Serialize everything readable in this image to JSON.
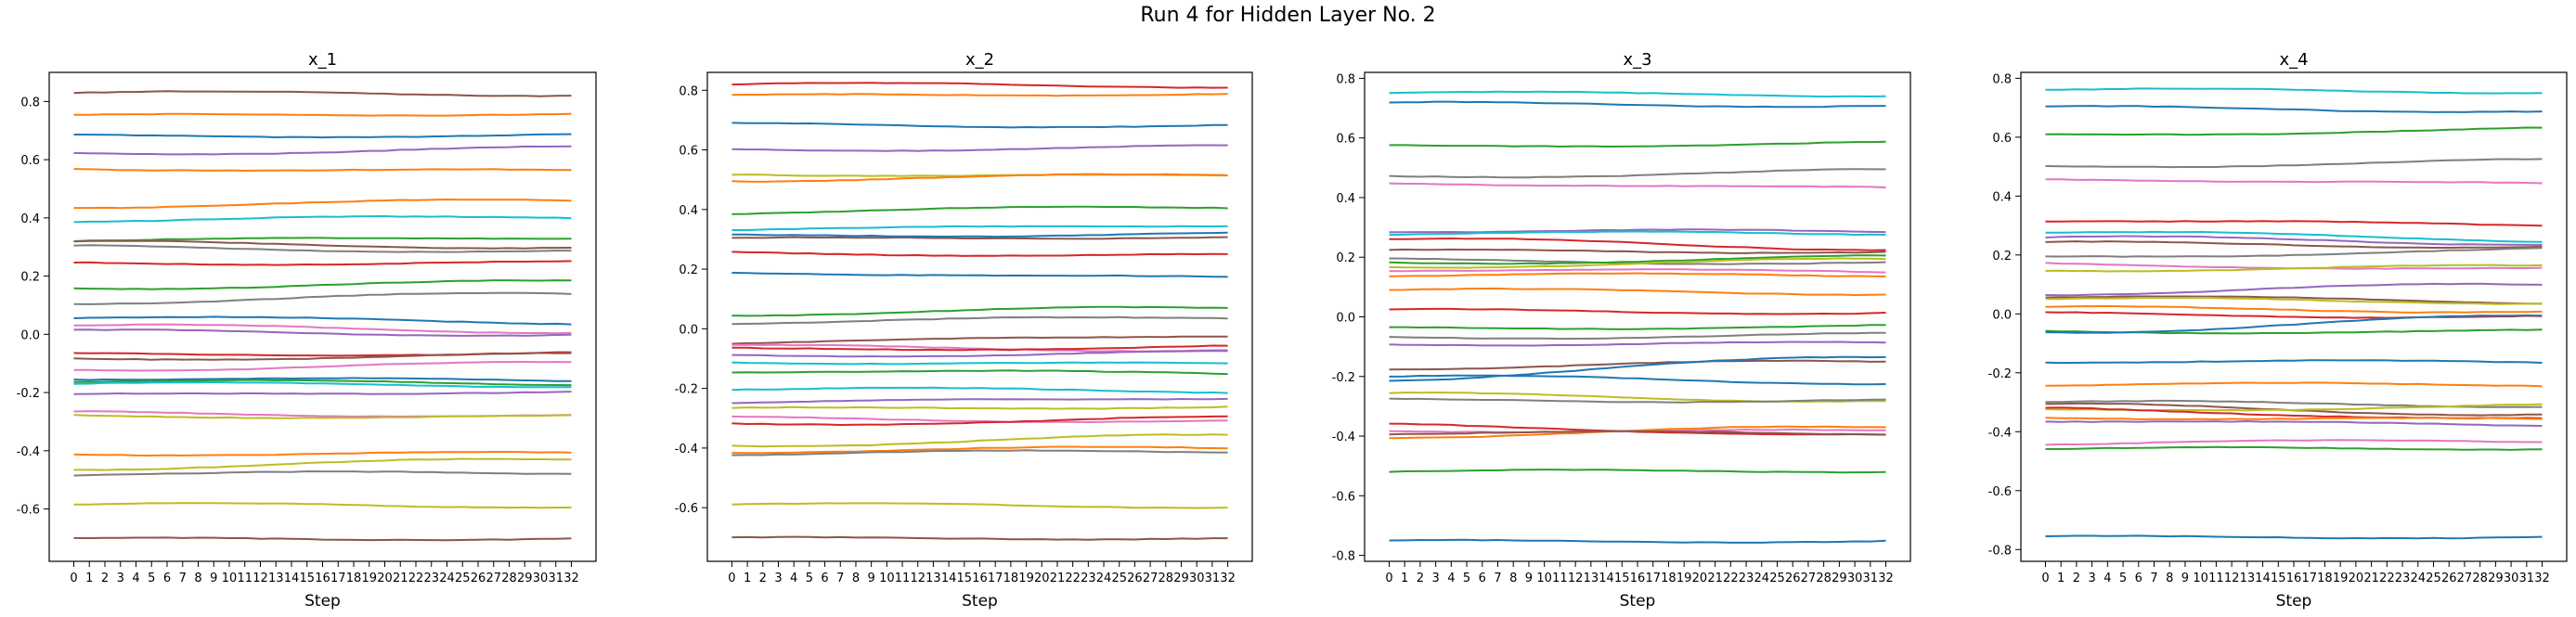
{
  "figure": {
    "title": "Run 4 for Hidden Layer No. 2"
  },
  "chart_data": [
    {
      "type": "line",
      "title": "x_1",
      "xlabel": "Step",
      "ylabel": "",
      "x": [
        0,
        1,
        2,
        3,
        4,
        5,
        6,
        7,
        8,
        9,
        10,
        11,
        12,
        13,
        14,
        15,
        16,
        17,
        18,
        19,
        20,
        21,
        22,
        23,
        24,
        25,
        26,
        27,
        28,
        29,
        30,
        31,
        32
      ],
      "ylim": [
        -0.78,
        0.9
      ],
      "yticks": [
        -0.6,
        -0.4,
        -0.2,
        0.0,
        0.2,
        0.4,
        0.6,
        0.8
      ],
      "series": [
        {
          "color": "#8c564b",
          "start": 0.83,
          "end": 0.825
        },
        {
          "color": "#ff7f0e",
          "start": 0.75,
          "end": 0.76
        },
        {
          "color": "#1f77b4",
          "start": 0.68,
          "end": 0.685
        },
        {
          "color": "#9467bd",
          "start": 0.62,
          "end": 0.64
        },
        {
          "color": "#ff7f0e",
          "start": 0.57,
          "end": 0.56
        },
        {
          "color": "#ff7f0e",
          "start": 0.44,
          "end": 0.46
        },
        {
          "color": "#17becf",
          "start": 0.39,
          "end": 0.405
        },
        {
          "color": "#2ca02c",
          "start": 0.32,
          "end": 0.335
        },
        {
          "color": "#8c564b",
          "start": 0.315,
          "end": 0.3
        },
        {
          "color": "#7f7f7f",
          "start": 0.3,
          "end": 0.285
        },
        {
          "color": "#d62728",
          "start": 0.245,
          "end": 0.245
        },
        {
          "color": "#2ca02c",
          "start": 0.16,
          "end": 0.18
        },
        {
          "color": "#7f7f7f",
          "start": 0.11,
          "end": 0.14
        },
        {
          "color": "#1f77b4",
          "start": 0.06,
          "end": 0.04
        },
        {
          "color": "#e377c2",
          "start": 0.03,
          "end": 0.01
        },
        {
          "color": "#9467bd",
          "start": 0.01,
          "end": 0.0
        },
        {
          "color": "#d62728",
          "start": -0.07,
          "end": -0.065
        },
        {
          "color": "#8c564b",
          "start": -0.085,
          "end": -0.07
        },
        {
          "color": "#e377c2",
          "start": -0.12,
          "end": -0.1
        },
        {
          "color": "#1f77b4",
          "start": -0.15,
          "end": -0.16
        },
        {
          "color": "#2ca02c",
          "start": -0.16,
          "end": -0.17
        },
        {
          "color": "#17becf",
          "start": -0.17,
          "end": -0.175
        },
        {
          "color": "#9467bd",
          "start": -0.21,
          "end": -0.195
        },
        {
          "color": "#e377c2",
          "start": -0.27,
          "end": -0.28
        },
        {
          "color": "#bcbd22",
          "start": -0.28,
          "end": -0.285
        },
        {
          "color": "#ff7f0e",
          "start": -0.41,
          "end": -0.41
        },
        {
          "color": "#bcbd22",
          "start": -0.46,
          "end": -0.43
        },
        {
          "color": "#7f7f7f",
          "start": -0.48,
          "end": -0.475
        },
        {
          "color": "#bcbd22",
          "start": -0.585,
          "end": -0.59
        },
        {
          "color": "#8c564b",
          "start": -0.705,
          "end": -0.7
        }
      ]
    },
    {
      "type": "line",
      "title": "x_2",
      "xlabel": "Step",
      "ylabel": "",
      "x": [
        0,
        1,
        2,
        3,
        4,
        5,
        6,
        7,
        8,
        9,
        10,
        11,
        12,
        13,
        14,
        15,
        16,
        17,
        18,
        19,
        20,
        21,
        22,
        23,
        24,
        25,
        26,
        27,
        28,
        29,
        30,
        31,
        32
      ],
      "ylim": [
        -0.78,
        0.86
      ],
      "yticks": [
        -0.6,
        -0.4,
        -0.2,
        0.0,
        0.2,
        0.4,
        0.6,
        0.8
      ],
      "series": [
        {
          "color": "#d62728",
          "start": 0.82,
          "end": 0.815
        },
        {
          "color": "#ff7f0e",
          "start": 0.78,
          "end": 0.79
        },
        {
          "color": "#1f77b4",
          "start": 0.685,
          "end": 0.68
        },
        {
          "color": "#9467bd",
          "start": 0.6,
          "end": 0.61
        },
        {
          "color": "#bcbd22",
          "start": 0.52,
          "end": 0.51
        },
        {
          "color": "#ff7f0e",
          "start": 0.5,
          "end": 0.515
        },
        {
          "color": "#2ca02c",
          "start": 0.39,
          "end": 0.41
        },
        {
          "color": "#17becf",
          "start": 0.33,
          "end": 0.35
        },
        {
          "color": "#8c564b",
          "start": 0.3,
          "end": 0.31
        },
        {
          "color": "#1f77b4",
          "start": 0.31,
          "end": 0.32
        },
        {
          "color": "#d62728",
          "start": 0.255,
          "end": 0.245
        },
        {
          "color": "#1f77b4",
          "start": 0.19,
          "end": 0.17
        },
        {
          "color": "#2ca02c",
          "start": 0.05,
          "end": 0.07
        },
        {
          "color": "#7f7f7f",
          "start": 0.02,
          "end": 0.04
        },
        {
          "color": "#8c564b",
          "start": -0.05,
          "end": -0.02
        },
        {
          "color": "#e377c2",
          "start": -0.06,
          "end": -0.07
        },
        {
          "color": "#d62728",
          "start": -0.07,
          "end": -0.06
        },
        {
          "color": "#9467bd",
          "start": -0.09,
          "end": -0.08
        },
        {
          "color": "#17becf",
          "start": -0.11,
          "end": -0.12
        },
        {
          "color": "#2ca02c",
          "start": -0.14,
          "end": -0.15
        },
        {
          "color": "#17becf",
          "start": -0.2,
          "end": -0.21
        },
        {
          "color": "#9467bd",
          "start": -0.25,
          "end": -0.23
        },
        {
          "color": "#bcbd22",
          "start": -0.27,
          "end": -0.26
        },
        {
          "color": "#e377c2",
          "start": -0.3,
          "end": -0.31
        },
        {
          "color": "#d62728",
          "start": -0.32,
          "end": -0.3
        },
        {
          "color": "#bcbd22",
          "start": -0.39,
          "end": -0.36
        },
        {
          "color": "#ff7f0e",
          "start": -0.41,
          "end": -0.4
        },
        {
          "color": "#7f7f7f",
          "start": -0.42,
          "end": -0.41
        },
        {
          "color": "#bcbd22",
          "start": -0.59,
          "end": -0.595
        },
        {
          "color": "#8c564b",
          "start": -0.705,
          "end": -0.7
        }
      ]
    },
    {
      "type": "line",
      "title": "x_3",
      "xlabel": "Step",
      "ylabel": "",
      "x": [
        0,
        1,
        2,
        3,
        4,
        5,
        6,
        7,
        8,
        9,
        10,
        11,
        12,
        13,
        14,
        15,
        16,
        17,
        18,
        19,
        20,
        21,
        22,
        23,
        24,
        25,
        26,
        27,
        28,
        29,
        30,
        31,
        32
      ],
      "ylim": [
        -0.82,
        0.82
      ],
      "yticks": [
        -0.8,
        -0.6,
        -0.4,
        -0.2,
        0.0,
        0.2,
        0.4,
        0.6,
        0.8
      ],
      "series": [
        {
          "color": "#17becf",
          "start": 0.75,
          "end": 0.745
        },
        {
          "color": "#1f77b4",
          "start": 0.715,
          "end": 0.71
        },
        {
          "color": "#2ca02c",
          "start": 0.57,
          "end": 0.585
        },
        {
          "color": "#7f7f7f",
          "start": 0.47,
          "end": 0.49
        },
        {
          "color": "#e377c2",
          "start": 0.45,
          "end": 0.43
        },
        {
          "color": "#9467bd",
          "start": 0.29,
          "end": 0.285
        },
        {
          "color": "#17becf",
          "start": 0.28,
          "end": 0.28
        },
        {
          "color": "#d62728",
          "start": 0.26,
          "end": 0.23
        },
        {
          "color": "#8c564b",
          "start": 0.22,
          "end": 0.22
        },
        {
          "color": "#7f7f7f",
          "start": 0.19,
          "end": 0.18
        },
        {
          "color": "#2ca02c",
          "start": 0.18,
          "end": 0.2
        },
        {
          "color": "#bcbd22",
          "start": 0.17,
          "end": 0.19
        },
        {
          "color": "#e377c2",
          "start": 0.16,
          "end": 0.15
        },
        {
          "color": "#ff7f0e",
          "start": 0.14,
          "end": 0.14
        },
        {
          "color": "#ff7f0e",
          "start": 0.09,
          "end": 0.08
        },
        {
          "color": "#d62728",
          "start": 0.02,
          "end": 0.015
        },
        {
          "color": "#2ca02c",
          "start": -0.04,
          "end": -0.03
        },
        {
          "color": "#7f7f7f",
          "start": -0.07,
          "end": -0.06
        },
        {
          "color": "#9467bd",
          "start": -0.09,
          "end": -0.09
        },
        {
          "color": "#8c564b",
          "start": -0.17,
          "end": -0.15
        },
        {
          "color": "#1f77b4",
          "start": -0.21,
          "end": -0.13
        },
        {
          "color": "#1f77b4",
          "start": -0.2,
          "end": -0.22
        },
        {
          "color": "#bcbd22",
          "start": -0.26,
          "end": -0.28
        },
        {
          "color": "#7f7f7f",
          "start": -0.28,
          "end": -0.28
        },
        {
          "color": "#d62728",
          "start": -0.36,
          "end": -0.4
        },
        {
          "color": "#e377c2",
          "start": -0.38,
          "end": -0.385
        },
        {
          "color": "#ff7f0e",
          "start": -0.4,
          "end": -0.37
        },
        {
          "color": "#8c564b",
          "start": -0.39,
          "end": -0.39
        },
        {
          "color": "#2ca02c",
          "start": -0.52,
          "end": -0.515
        },
        {
          "color": "#1f77b4",
          "start": -0.755,
          "end": -0.75
        }
      ]
    },
    {
      "type": "line",
      "title": "x_4",
      "xlabel": "Step",
      "ylabel": "",
      "x": [
        0,
        1,
        2,
        3,
        4,
        5,
        6,
        7,
        8,
        9,
        10,
        11,
        12,
        13,
        14,
        15,
        16,
        17,
        18,
        19,
        20,
        21,
        22,
        23,
        24,
        25,
        26,
        27,
        28,
        29,
        30,
        31,
        32
      ],
      "ylim": [
        -0.84,
        0.82
      ],
      "yticks": [
        -0.8,
        -0.6,
        -0.4,
        -0.2,
        0.0,
        0.2,
        0.4,
        0.6,
        0.8
      ],
      "series": [
        {
          "color": "#17becf",
          "start": 0.76,
          "end": 0.755
        },
        {
          "color": "#1f77b4",
          "start": 0.7,
          "end": 0.69
        },
        {
          "color": "#2ca02c",
          "start": 0.605,
          "end": 0.63
        },
        {
          "color": "#7f7f7f",
          "start": 0.5,
          "end": 0.52
        },
        {
          "color": "#e377c2",
          "start": 0.46,
          "end": 0.44
        },
        {
          "color": "#d62728",
          "start": 0.32,
          "end": 0.3
        },
        {
          "color": "#17becf",
          "start": 0.28,
          "end": 0.25
        },
        {
          "color": "#9467bd",
          "start": 0.26,
          "end": 0.24
        },
        {
          "color": "#8c564b",
          "start": 0.24,
          "end": 0.23
        },
        {
          "color": "#7f7f7f",
          "start": 0.19,
          "end": 0.22
        },
        {
          "color": "#e377c2",
          "start": 0.17,
          "end": 0.15
        },
        {
          "color": "#bcbd22",
          "start": 0.15,
          "end": 0.16
        },
        {
          "color": "#9467bd",
          "start": 0.07,
          "end": 0.1
        },
        {
          "color": "#8c564b",
          "start": 0.06,
          "end": 0.04
        },
        {
          "color": "#bcbd22",
          "start": 0.05,
          "end": 0.04
        },
        {
          "color": "#ff7f0e",
          "start": 0.02,
          "end": 0.01
        },
        {
          "color": "#d62728",
          "start": 0.0,
          "end": -0.01
        },
        {
          "color": "#2ca02c",
          "start": -0.06,
          "end": -0.06
        },
        {
          "color": "#1f77b4",
          "start": -0.06,
          "end": -0.01
        },
        {
          "color": "#1f77b4",
          "start": -0.16,
          "end": -0.165
        },
        {
          "color": "#ff7f0e",
          "start": -0.24,
          "end": -0.24
        },
        {
          "color": "#7f7f7f",
          "start": -0.3,
          "end": -0.31
        },
        {
          "color": "#8c564b",
          "start": -0.31,
          "end": -0.34
        },
        {
          "color": "#bcbd22",
          "start": -0.33,
          "end": -0.31
        },
        {
          "color": "#d62728",
          "start": -0.32,
          "end": -0.36
        },
        {
          "color": "#ff7f0e",
          "start": -0.35,
          "end": -0.36
        },
        {
          "color": "#9467bd",
          "start": -0.36,
          "end": -0.38
        },
        {
          "color": "#e377c2",
          "start": -0.44,
          "end": -0.43
        },
        {
          "color": "#2ca02c",
          "start": -0.46,
          "end": -0.455
        },
        {
          "color": "#1f77b4",
          "start": -0.76,
          "end": -0.755
        }
      ]
    }
  ]
}
